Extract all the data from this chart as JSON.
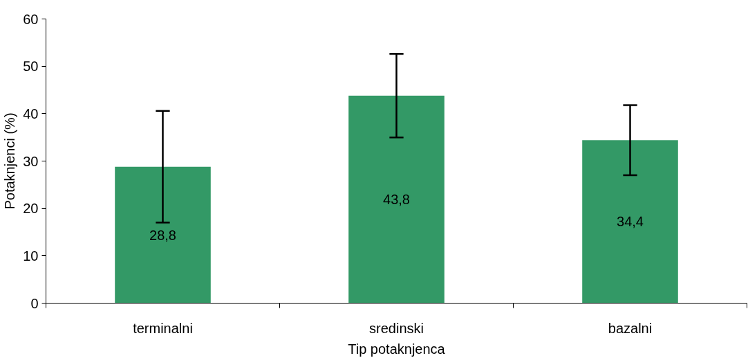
{
  "chart_data": {
    "type": "bar",
    "xlabel": "Tip potaknjenca",
    "ylabel": "Potaknjenci (%)",
    "categories": [
      "terminalni",
      "sredinski",
      "bazalni"
    ],
    "values": [
      28.8,
      43.8,
      34.4
    ],
    "value_labels": [
      "28,8",
      "43,8",
      "34,4"
    ],
    "errors": [
      11.8,
      8.8,
      7.4
    ],
    "color": "#339966",
    "ylim": [
      0,
      60
    ],
    "yticks": [
      0,
      10,
      20,
      30,
      40,
      50,
      60
    ],
    "grid": false
  }
}
